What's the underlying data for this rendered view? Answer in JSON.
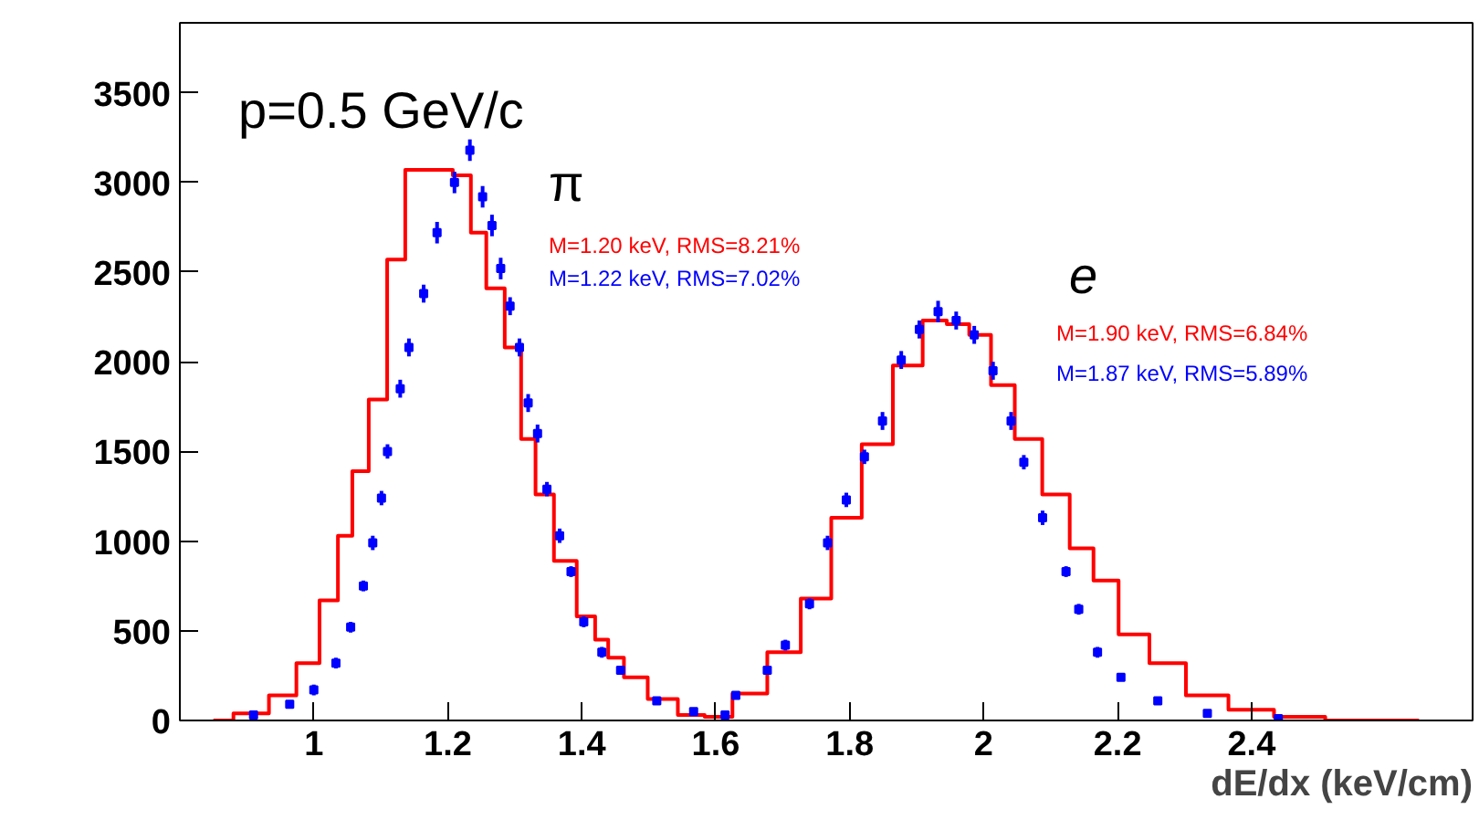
{
  "chart_data": {
    "type": "step",
    "xlabel": "dE/dx (keV/cm)",
    "xlim": [
      0.8,
      2.73
    ],
    "ylim": [
      0,
      3890
    ],
    "xticks": [
      1,
      1.2,
      1.4,
      1.6,
      1.8,
      2,
      2.2,
      2.4
    ],
    "yticks": [
      0,
      500,
      1000,
      1500,
      2000,
      2500,
      3000,
      3500
    ],
    "grid": false,
    "marker": "none",
    "line_style": "solid",
    "annotations": [
      "p=0.5 GeV/c",
      "π",
      "e",
      "M=1.20 keV, RMS=8.21%",
      "M=1.22 keV, RMS=7.02%",
      "M=1.90 keV, RMS=6.84%",
      "M=1.87 keV, RMS=5.89%"
    ],
    "series": [
      {
        "color": "#ff0000",
        "x": [
          0.85,
          0.91,
          0.956,
          0.992,
          1.025,
          1.047,
          1.068,
          1.096,
          1.123,
          1.15,
          1.19,
          1.225,
          1.244,
          1.271,
          1.299,
          1.32,
          1.342,
          1.375,
          1.41,
          1.43,
          1.449,
          1.477,
          1.52,
          1.567,
          1.6,
          1.65,
          1.704,
          1.75,
          1.795,
          1.841,
          1.888,
          1.93,
          1.96,
          1.997,
          2.025,
          2.068,
          2.107,
          2.15,
          2.178,
          2.225,
          2.27,
          2.334,
          2.397,
          2.47,
          2.55,
          2.65
        ],
        "values": [
          0,
          40,
          140,
          320,
          670,
          1030,
          1390,
          1790,
          2570,
          3070,
          3070,
          3040,
          2720,
          2410,
          2080,
          1570,
          1260,
          890,
          580,
          450,
          350,
          240,
          120,
          30,
          20,
          150,
          380,
          680,
          1130,
          1540,
          1980,
          2230,
          2210,
          2150,
          1870,
          1570,
          1260,
          960,
          780,
          480,
          320,
          140,
          60,
          20,
          0,
          0
        ]
      },
      {
        "type": "scatter",
        "color": "#0000ff",
        "marker": "square",
        "x": [
          0.91,
          0.964,
          1.0,
          1.033,
          1.055,
          1.074,
          1.088,
          1.101,
          1.11,
          1.129,
          1.142,
          1.164,
          1.184,
          1.21,
          1.233,
          1.252,
          1.266,
          1.279,
          1.293,
          1.307,
          1.32,
          1.334,
          1.348,
          1.367,
          1.384,
          1.403,
          1.43,
          1.458,
          1.512,
          1.567,
          1.614,
          1.63,
          1.677,
          1.704,
          1.74,
          1.767,
          1.795,
          1.822,
          1.849,
          1.877,
          1.904,
          1.932,
          1.959,
          1.986,
          2.014,
          2.041,
          2.06,
          2.088,
          2.123,
          2.142,
          2.17,
          2.205,
          2.26,
          2.334,
          2.44
        ],
        "values": [
          30,
          90,
          170,
          320,
          520,
          750,
          990,
          1240,
          1500,
          1850,
          2080,
          2380,
          2720,
          3000,
          3180,
          2920,
          2760,
          2520,
          2310,
          2080,
          1770,
          1600,
          1290,
          1030,
          830,
          550,
          380,
          280,
          110,
          50,
          30,
          140,
          280,
          420,
          650,
          990,
          1230,
          1470,
          1670,
          2010,
          2180,
          2280,
          2230,
          2150,
          1950,
          1670,
          1440,
          1130,
          830,
          620,
          380,
          240,
          110,
          40,
          10
        ],
        "errors": [
          20,
          20,
          30,
          30,
          30,
          30,
          40,
          40,
          40,
          50,
          50,
          50,
          60,
          60,
          60,
          60,
          60,
          60,
          50,
          50,
          50,
          50,
          40,
          40,
          30,
          30,
          30,
          20,
          20,
          20,
          20,
          20,
          20,
          30,
          30,
          40,
          40,
          40,
          50,
          50,
          50,
          60,
          50,
          50,
          50,
          50,
          40,
          40,
          30,
          30,
          30,
          20,
          20,
          20,
          10
        ]
      }
    ]
  }
}
